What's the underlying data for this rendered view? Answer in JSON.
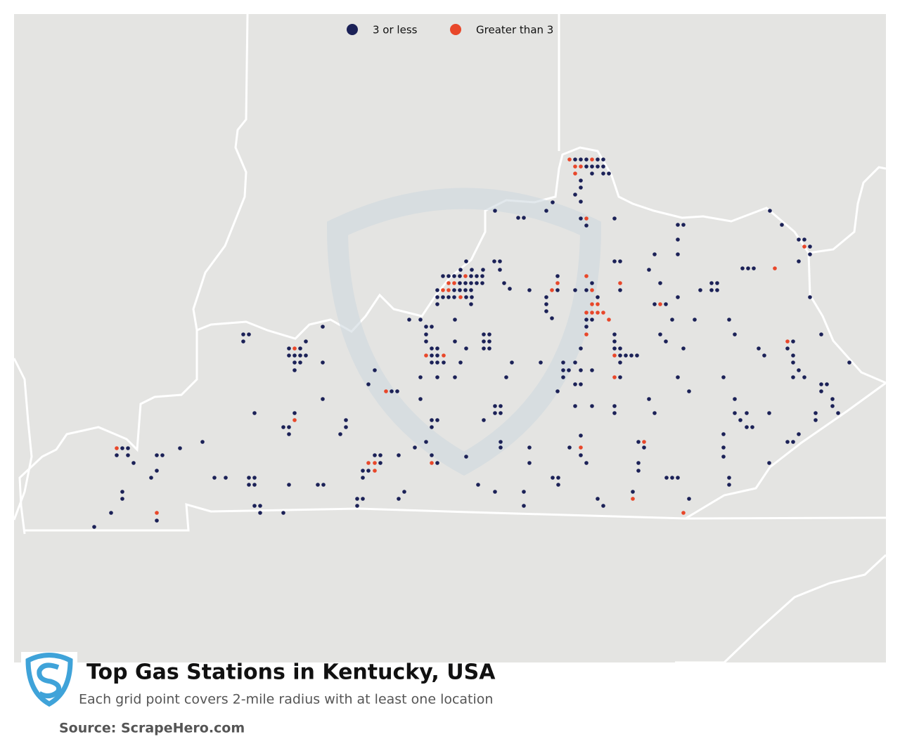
{
  "legend": [
    {
      "label": "3 or less",
      "color": "#1b2157"
    },
    {
      "label": "Greater than 3",
      "color": "#e8472a"
    }
  ],
  "title": "Top Gas Stations in Kentucky, USA",
  "subtitle": "Each grid point covers 2-mile radius with at least one location",
  "source": "Source: ScrapeHero.com"
}
